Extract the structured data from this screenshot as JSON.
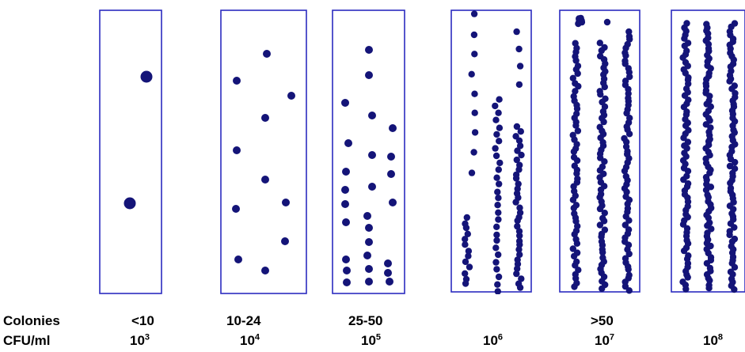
{
  "diagram": {
    "colors": {
      "tube_border": "#2b2bbf",
      "colony": "#141478",
      "text": "#000000"
    },
    "tubes": [
      {
        "name": "tube-1"
      },
      {
        "name": "tube-2"
      },
      {
        "name": "tube-3"
      },
      {
        "name": "tube-4"
      },
      {
        "name": "tube-5"
      },
      {
        "name": "tube-6"
      }
    ]
  },
  "labels": {
    "colonies_title": "Colonies",
    "cfu_title": "CFU/ml",
    "colonies": [
      "<10",
      "10-24",
      "25-50",
      ">50"
    ],
    "cfu": [
      {
        "base": "10",
        "exp": "3"
      },
      {
        "base": "10",
        "exp": "4"
      },
      {
        "base": "10",
        "exp": "5"
      },
      {
        "base": "10",
        "exp": "6"
      },
      {
        "base": "10",
        "exp": "7"
      },
      {
        "base": "10",
        "exp": "8"
      }
    ]
  }
}
